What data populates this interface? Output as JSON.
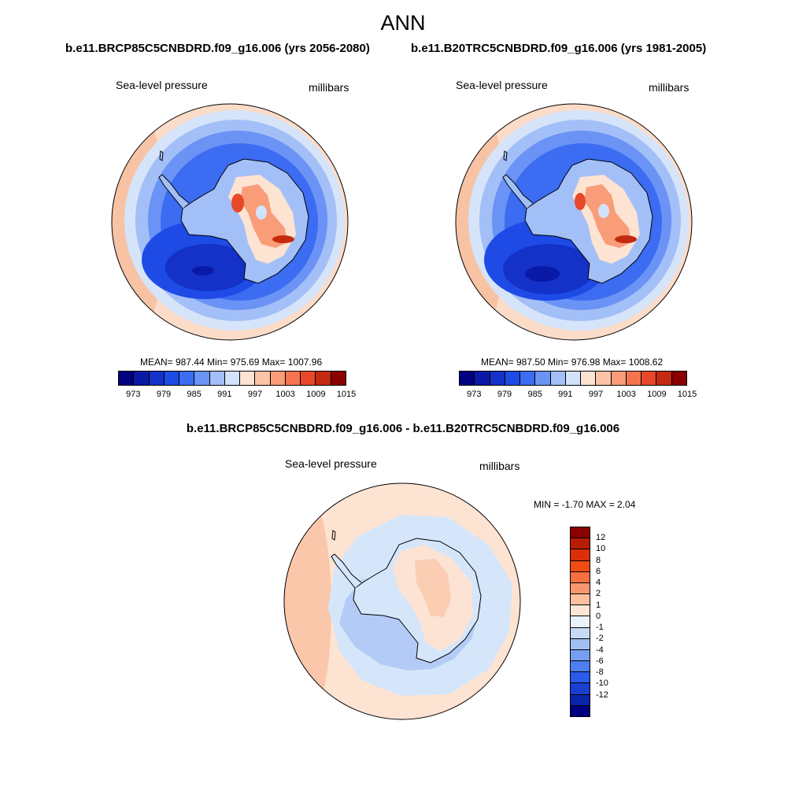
{
  "title": "ANN",
  "left_panel": {
    "case": "b.e11.BRCP85C5CNBDRD.f09_g16.006 (yrs 2056-2080)",
    "variable": "Sea-level pressure",
    "units": "millibars",
    "stats": "MEAN= 987.44  Min= 975.69  Max= 1007.96"
  },
  "right_panel": {
    "case": "b.e11.B20TRC5CNBDRD.f09_g16.006 (yrs 1981-2005)",
    "variable": "Sea-level pressure",
    "units": "millibars",
    "stats": "MEAN= 987.50  Min= 976.98  Max= 1008.62"
  },
  "diff_panel": {
    "title": "b.e11.BRCP85C5CNBDRD.f09_g16.006 - b.e11.B20TRC5CNBDRD.f09_g16.006",
    "variable": "Sea-level pressure",
    "units": "millibars",
    "stats": "MIN =  -1.70 MAX =   2.04"
  },
  "colorbar_abs": {
    "colors": [
      "#000080",
      "#0a1aa6",
      "#1432c8",
      "#1e4be6",
      "#3b6cf2",
      "#6b93f5",
      "#a3bff7",
      "#d2e2fa",
      "#fde3d2",
      "#fcc3a6",
      "#f99c78",
      "#f5744f",
      "#e8482a",
      "#c42a10",
      "#8b0000"
    ],
    "ticks": [
      "973",
      "979",
      "985",
      "991",
      "997",
      "1003",
      "1009",
      "1015"
    ]
  },
  "colorbar_diff": {
    "colors": [
      "#8b0000",
      "#b71c06",
      "#d9300a",
      "#f04c12",
      "#f97040",
      "#f99670",
      "#fcc0a0",
      "#fde6d6",
      "#e9f1fb",
      "#c6daf7",
      "#a0bff3",
      "#769ff0",
      "#4d7ff0",
      "#2a5ce9",
      "#1a3fcf",
      "#0a24a8",
      "#000080"
    ],
    "ticks": [
      "12",
      "10",
      "8",
      "6",
      "4",
      "2",
      "1",
      "0",
      "-1",
      "-2",
      "-4",
      "-6",
      "-8",
      "-10",
      "-12"
    ]
  },
  "palette": {
    "ring_outer": "#f7c3a4",
    "ring_edge": "#fbdcc8",
    "light_blue": "#c8dcf7",
    "mid_blue": "#6b93f5",
    "deep_blue": "#2a58e6",
    "darkest_blue": "#1438c8",
    "land_low": "#a9c4f6",
    "land_mid": "#fde3d2",
    "land_high": "#f99c78",
    "land_peak": "#e8482a",
    "diff_outer": "#fde3d2",
    "diff_ring": "#d6e6fa",
    "diff_inner": "#b3cbf6",
    "diff_land": "#fce3d4",
    "diff_land_high": "#fbcdb2"
  }
}
